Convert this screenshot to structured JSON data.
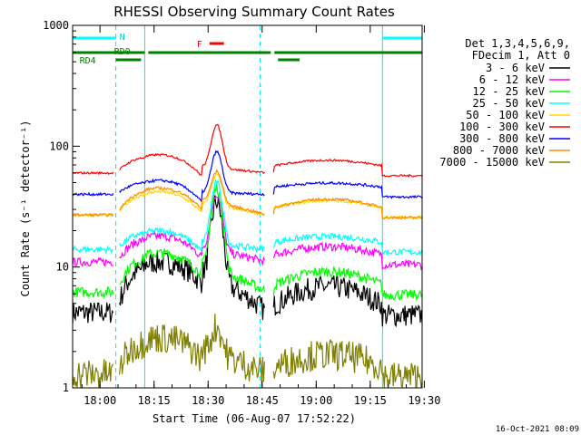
{
  "chart_data": {
    "type": "line",
    "title": "RHESSI Observing Summary Count Rates",
    "xlabel": "Start Time (06-Aug-07 17:52:22)",
    "ylabel": "Count Rate (s⁻¹ detector⁻¹)",
    "y_scale": "log",
    "ylim": [
      1,
      1000
    ],
    "xlim_minutes_after_start": [
      0,
      97
    ],
    "x_ticks": [
      {
        "label": "18:00",
        "minutes": 7.6
      },
      {
        "label": "18:15",
        "minutes": 22.6
      },
      {
        "label": "18:30",
        "minutes": 37.6
      },
      {
        "label": "18:45",
        "minutes": 52.6
      },
      {
        "label": "19:00",
        "minutes": 67.6
      },
      {
        "label": "19:15",
        "minutes": 82.6
      },
      {
        "label": "19:30",
        "minutes": 97.6
      }
    ],
    "y_ticks": [
      {
        "label": "1",
        "value": 1
      },
      {
        "label": "10",
        "value": 10
      },
      {
        "label": "100",
        "value": 100
      },
      {
        "label": "1000",
        "value": 1000
      }
    ],
    "legend_header": [
      "Det 1,3,4,5,6,9,",
      "FDecim 1, Att 0"
    ],
    "legend_position": "right",
    "series": [
      {
        "name": "3 - 6 keV",
        "color": "#000000",
        "base": 4.2,
        "hump": 11,
        "peak": 35,
        "noise": 0.22
      },
      {
        "name": "6 - 12 keV",
        "color": "#ff00ff",
        "base": 11,
        "hump": 18,
        "peak": 40,
        "noise": 0.08
      },
      {
        "name": "12 - 25 keV",
        "color": "#00ff00",
        "base": 6.2,
        "hump": 13,
        "peak": 45,
        "noise": 0.1
      },
      {
        "name": "25 - 50 keV",
        "color": "#00ffff",
        "base": 14,
        "hump": 20,
        "peak": 50,
        "noise": 0.06
      },
      {
        "name": "50 - 100 keV",
        "color": "#ffd700",
        "base": 27,
        "hump": 42,
        "peak": 58,
        "noise": 0.03
      },
      {
        "name": "100 - 300 keV",
        "color": "#ff0000",
        "base": 60,
        "hump": 85,
        "peak": 150,
        "noise": 0.02
      },
      {
        "name": "300 - 800 keV",
        "color": "#0000ff",
        "base": 40,
        "hump": 52,
        "peak": 90,
        "noise": 0.025
      },
      {
        "name": "800 - 7000 keV",
        "color": "#ff8c00",
        "base": 27,
        "hump": 45,
        "peak": 62,
        "noise": 0.025
      },
      {
        "name": "7000 - 15000 keV",
        "color": "#808000",
        "base": 1.3,
        "hump": 2.6,
        "peak": 3.2,
        "noise": 0.3
      }
    ],
    "data_gaps_minutes": [
      [
        11.5,
        12.8
      ],
      [
        53.5,
        55.5
      ]
    ],
    "annotations": {
      "night": {
        "label": "N",
        "segments": [
          [
            0,
            12
          ],
          [
            86,
            97
          ]
        ]
      },
      "flare": {
        "label": "F",
        "segments": [
          [
            38,
            42
          ]
        ]
      },
      "rd0": {
        "label": "RD0",
        "segments": [
          [
            0,
            20
          ],
          [
            21,
            55
          ],
          [
            56,
            97
          ]
        ]
      },
      "rd4": {
        "label": "RD4",
        "segments": [
          [
            12,
            19
          ],
          [
            57,
            63
          ]
        ]
      }
    },
    "vertical_markers_minutes": {
      "solid": [
        0,
        20,
        86
      ],
      "dashed": [
        12,
        52,
        97
      ]
    },
    "grid": false
  },
  "footer_timestamp": "16-Oct-2021 08:09"
}
